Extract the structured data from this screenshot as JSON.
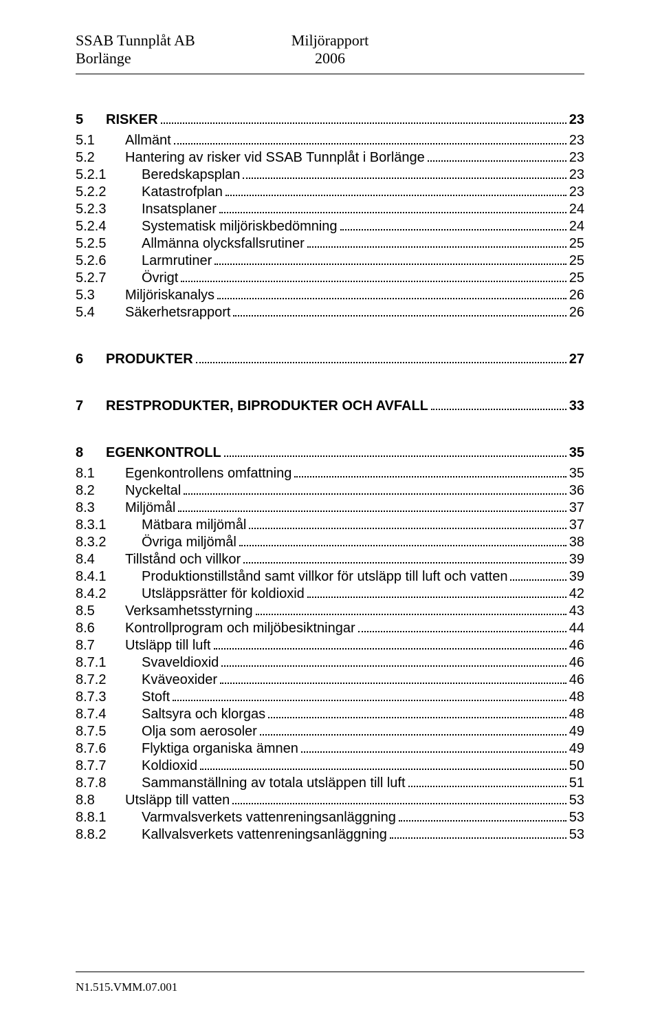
{
  "header": {
    "left_line1": "SSAB Tunnplåt AB",
    "left_line2": "Borlänge",
    "center_line1": "Miljörapport",
    "center_line2": "2006"
  },
  "footer": {
    "text": "N1.515.VMM.07.001"
  },
  "toc": [
    {
      "level": 1,
      "num": "5",
      "label": "RISKER",
      "page": "23",
      "extra_gap": false
    },
    {
      "level": 2,
      "num": "5.1",
      "label": "Allmänt",
      "page": "23"
    },
    {
      "level": 2,
      "num": "5.2",
      "label": "Hantering av risker vid SSAB Tunnplåt i Borlänge",
      "page": "23"
    },
    {
      "level": 3,
      "num": "5.2.1",
      "label": "Beredskapsplan",
      "page": "23"
    },
    {
      "level": 3,
      "num": "5.2.2",
      "label": "Katastrofplan",
      "page": "23"
    },
    {
      "level": 3,
      "num": "5.2.3",
      "label": "Insatsplaner",
      "page": "24"
    },
    {
      "level": 3,
      "num": "5.2.4",
      "label": "Systematisk miljöriskbedömning",
      "page": "24"
    },
    {
      "level": 3,
      "num": "5.2.5",
      "label": "Allmänna olycksfallsrutiner",
      "page": "25"
    },
    {
      "level": 3,
      "num": "5.2.6",
      "label": "Larmrutiner",
      "page": "25"
    },
    {
      "level": 3,
      "num": "5.2.7",
      "label": "Övrigt",
      "page": "25"
    },
    {
      "level": 2,
      "num": "5.3",
      "label": "Miljöriskanalys",
      "page": "26"
    },
    {
      "level": 2,
      "num": "5.4",
      "label": "Säkerhetsrapport",
      "page": "26"
    },
    {
      "level": 1,
      "num": "6",
      "label": "PRODUKTER",
      "page": "27",
      "extra_gap": true
    },
    {
      "level": 1,
      "num": "7",
      "label": "RESTPRODUKTER, BIPRODUKTER OCH AVFALL",
      "page": "33",
      "extra_gap": true
    },
    {
      "level": 1,
      "num": "8",
      "label": "EGENKONTROLL",
      "page": "35",
      "extra_gap": true
    },
    {
      "level": 2,
      "num": "8.1",
      "label": "Egenkontrollens omfattning",
      "page": "35"
    },
    {
      "level": 2,
      "num": "8.2",
      "label": "Nyckeltal",
      "page": "36"
    },
    {
      "level": 2,
      "num": "8.3",
      "label": "Miljömål",
      "page": "37"
    },
    {
      "level": 3,
      "num": "8.3.1",
      "label": "Mätbara miljömål",
      "page": "37"
    },
    {
      "level": 3,
      "num": "8.3.2",
      "label": "Övriga miljömål",
      "page": "38"
    },
    {
      "level": 2,
      "num": "8.4",
      "label": "Tillstånd och villkor",
      "page": "39"
    },
    {
      "level": 3,
      "num": "8.4.1",
      "label": "Produktionstillstånd samt villkor för utsläpp till luft och vatten",
      "page": "39"
    },
    {
      "level": 3,
      "num": "8.4.2",
      "label": "Utsläppsrätter för koldioxid",
      "page": "42"
    },
    {
      "level": 2,
      "num": "8.5",
      "label": "Verksamhetsstyrning",
      "page": "43"
    },
    {
      "level": 2,
      "num": "8.6",
      "label": "Kontrollprogram och miljöbesiktningar",
      "page": "44"
    },
    {
      "level": 2,
      "num": "8.7",
      "label": "Utsläpp till luft",
      "page": "46"
    },
    {
      "level": 3,
      "num": "8.7.1",
      "label": "Svaveldioxid",
      "page": "46"
    },
    {
      "level": 3,
      "num": "8.7.2",
      "label": "Kväveoxider",
      "page": "46"
    },
    {
      "level": 3,
      "num": "8.7.3",
      "label": "Stoft",
      "page": "48"
    },
    {
      "level": 3,
      "num": "8.7.4",
      "label": "Saltsyra och klorgas",
      "page": "48"
    },
    {
      "level": 3,
      "num": "8.7.5",
      "label": "Olja som aerosoler",
      "page": "49"
    },
    {
      "level": 3,
      "num": "8.7.6",
      "label": "Flyktiga organiska ämnen",
      "page": "49"
    },
    {
      "level": 3,
      "num": "8.7.7",
      "label": "Koldioxid",
      "page": "50"
    },
    {
      "level": 3,
      "num": "8.7.8",
      "label": "Sammanställning av totala utsläppen till luft",
      "page": "51"
    },
    {
      "level": 2,
      "num": "8.8",
      "label": "Utsläpp till vatten",
      "page": "53"
    },
    {
      "level": 3,
      "num": "8.8.1",
      "label": "Varmvalsverkets vattenreningsanläggning",
      "page": "53"
    },
    {
      "level": 3,
      "num": "8.8.2",
      "label": "Kallvalsverkets vattenreningsanläggning",
      "page": "53"
    }
  ]
}
